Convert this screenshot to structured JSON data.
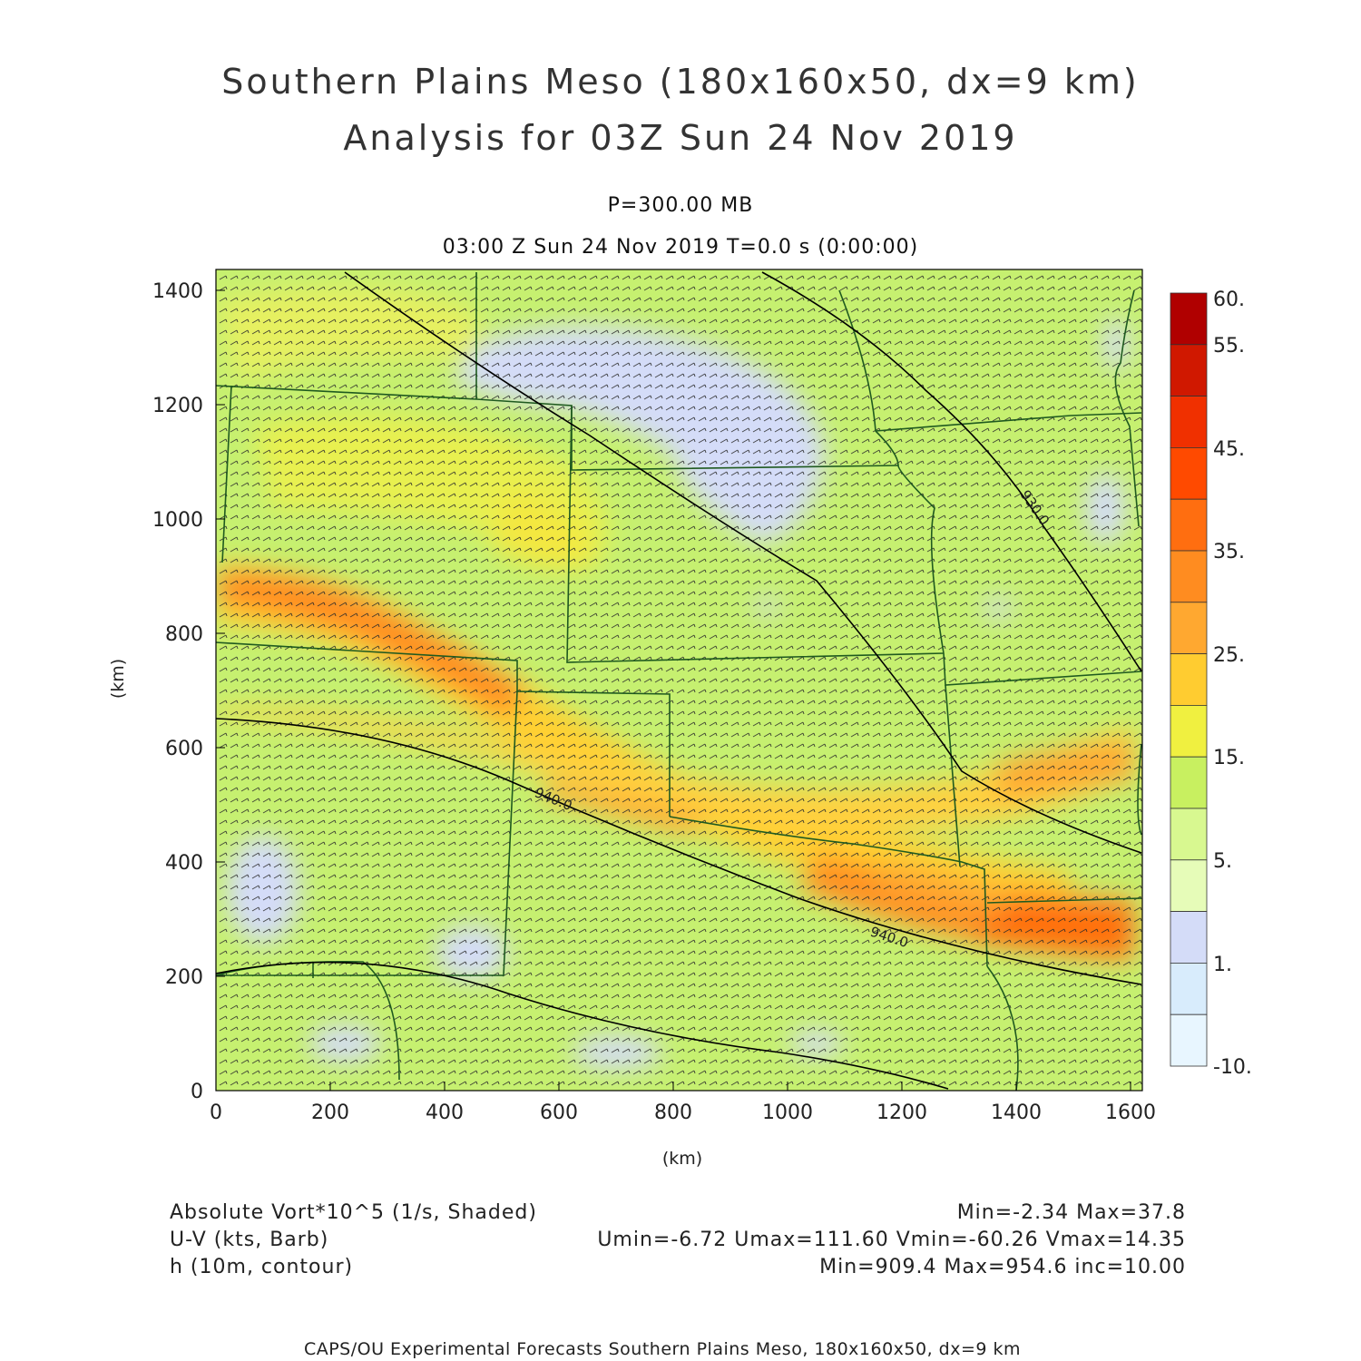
{
  "header": {
    "title_line1": "Southern Plains Meso (180x160x50, dx=9 km)",
    "title_line2": "Analysis for 03Z Sun 24 Nov 2019",
    "level": "P=300.00 MB",
    "time": "03:00 Z Sun 24 Nov 2019    T=0.0 s (0:00:00)"
  },
  "axes": {
    "x_label": "(km)",
    "y_label": "(km)",
    "x_ticks": [
      "0",
      "200",
      "400",
      "600",
      "800",
      "1000",
      "1200",
      "1400",
      "1600"
    ],
    "y_ticks": [
      "0",
      "200",
      "400",
      "600",
      "800",
      "1000",
      "1200",
      "1400"
    ]
  },
  "colorbar": {
    "labels": [
      "60.",
      "55.",
      "45.",
      "35.",
      "25.",
      "15.",
      "5.",
      "1.",
      "-10."
    ],
    "colors": [
      "#b00000",
      "#d01800",
      "#f03000",
      "#ff4a00",
      "#ff6e10",
      "#ff8c20",
      "#ffa830",
      "#ffcc30",
      "#f0f040",
      "#c8f060",
      "#d8f890",
      "#e6fcb8",
      "#d4dcf8",
      "#d8ecfc",
      "#e8f6ff"
    ]
  },
  "contour_labels": [
    "930.0",
    "940.0",
    "940.0"
  ],
  "legend": {
    "field1": "Absolute Vort*10^5 (1/s, Shaded)",
    "field1_stats": "Min=-2.34 Max=37.8",
    "field2": "U-V (kts, Barb)",
    "field2_stats": "Umin=-6.72 Umax=111.60 Vmin=-60.26 Vmax=14.35",
    "field3": "h (10m, contour)",
    "field3_stats": "Min=909.4 Max=954.6 inc=10.00"
  },
  "footer": "CAPS/OU Experimental Forecasts  Southern Plains Meso, 180x160x50, dx=9 km"
}
